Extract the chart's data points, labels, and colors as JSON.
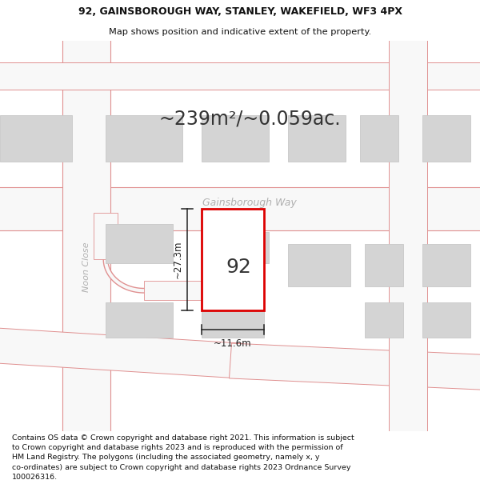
{
  "title_line1": "92, GAINSBOROUGH WAY, STANLEY, WAKEFIELD, WF3 4PX",
  "title_line2": "Map shows position and indicative extent of the property.",
  "area_text": "~239m²/~0.059ac.",
  "street_label": "Gainsborough Way",
  "street_label2": "Noon Close",
  "property_number": "92",
  "dim_width": "~11.6m",
  "dim_height": "~27.3m",
  "footer_text": "Contains OS data © Crown copyright and database right 2021. This information is subject to Crown copyright and database rights 2023 and is reproduced with the permission of HM Land Registry. The polygons (including the associated geometry, namely x, y co-ordinates) are subject to Crown copyright and database rights 2023 Ordnance Survey 100026316.",
  "bg_color": "#eeeeee",
  "map_bg": "#ebebeb",
  "road_color": "#f8f8f8",
  "road_outline_color": "#e09090",
  "building_fill": "#d4d4d4",
  "building_outline": "#c8c8c8",
  "plot_fill": "#ffffff",
  "plot_outline": "#dd0000",
  "dim_line_color": "#222222",
  "text_color": "#333333",
  "street_text_color": "#b0b0b0",
  "title_color": "#111111",
  "footer_color": "#111111",
  "title_fontsize": 9.0,
  "subtitle_fontsize": 8.2,
  "area_fontsize": 17,
  "property_num_fontsize": 18,
  "dim_fontsize": 8.5,
  "street_fontsize": 9,
  "noon_fontsize": 8
}
